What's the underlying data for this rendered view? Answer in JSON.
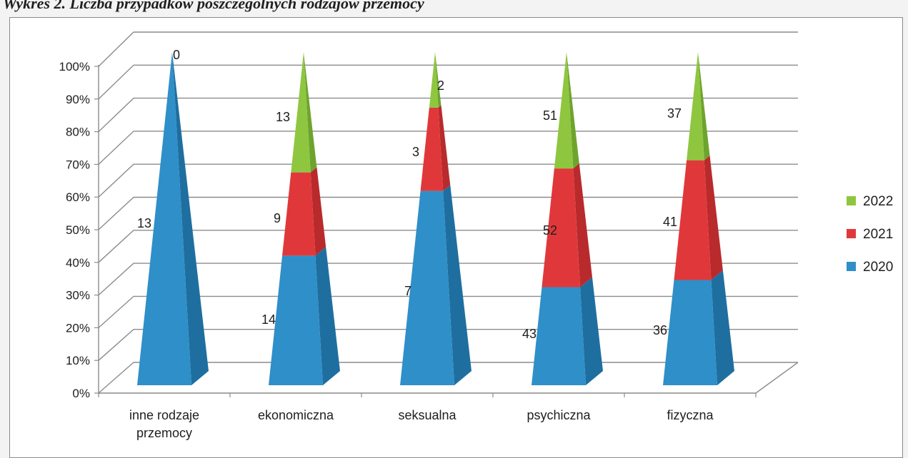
{
  "title": "Wykres 2. Liczba przypadków poszczególnych rodzajów przemocy",
  "chart_data": {
    "type": "bar",
    "subtype": "3d-pyramid-stacked-100",
    "title": "",
    "xlabel": "",
    "ylabel": "",
    "ylim": [
      0,
      100
    ],
    "y_ticks": [
      "0%",
      "10%",
      "20%",
      "30%",
      "40%",
      "50%",
      "60%",
      "70%",
      "80%",
      "90%",
      "100%"
    ],
    "grid": true,
    "legend_position": "right",
    "categories": [
      "inne rodzaje przemocy",
      "ekonomiczna",
      "seksualna",
      "psychiczna",
      "fizyczna"
    ],
    "category_label_lines": [
      [
        "inne rodzaje",
        "przemocy"
      ],
      [
        "ekonomiczna"
      ],
      [
        "seksualna"
      ],
      [
        "psychiczna"
      ],
      [
        "fizyczna"
      ]
    ],
    "series": [
      {
        "name": "2020",
        "values": [
          13,
          14,
          7,
          43,
          36
        ],
        "color": "#2f8fc8",
        "side_color": "#1e6f9f"
      },
      {
        "name": "2021",
        "values": [
          0,
          9,
          3,
          52,
          41
        ],
        "color": "#e0383a",
        "side_color": "#b92a2d"
      },
      {
        "name": "2022",
        "values": [
          0,
          13,
          2,
          51,
          37
        ],
        "color": "#8fc640",
        "side_color": "#6ea42d"
      }
    ],
    "data_labels": [
      [
        "13",
        "",
        "0"
      ],
      [
        "14",
        "9",
        "13"
      ],
      [
        "7",
        "3",
        "2"
      ],
      [
        "43",
        "52",
        "51"
      ],
      [
        "36",
        "41",
        "37"
      ]
    ]
  }
}
